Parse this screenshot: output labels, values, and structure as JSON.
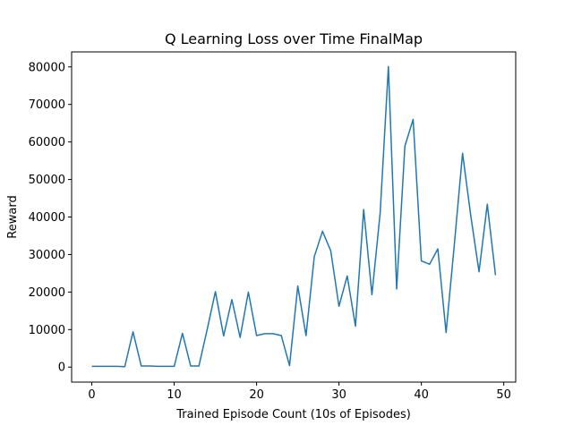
{
  "chart_data": {
    "type": "line",
    "title": "Q Learning Loss over Time FinalMap",
    "xlabel": "Trained Episode Count (10s of Episodes)",
    "ylabel": "Reward",
    "xlim": [
      -2.45,
      51.45
    ],
    "ylim": [
      -4000,
      84000
    ],
    "xticks": [
      0,
      10,
      20,
      30,
      40,
      50
    ],
    "yticks": [
      0,
      10000,
      20000,
      30000,
      40000,
      50000,
      60000,
      70000,
      80000
    ],
    "grid": false,
    "legend": "none",
    "series_color": "#1f77b4",
    "x": [
      0,
      1,
      2,
      3,
      4,
      5,
      6,
      7,
      8,
      9,
      10,
      11,
      12,
      13,
      14,
      15,
      16,
      17,
      18,
      19,
      20,
      21,
      22,
      23,
      24,
      25,
      26,
      27,
      28,
      29,
      30,
      31,
      32,
      33,
      34,
      35,
      36,
      37,
      38,
      39,
      40,
      41,
      42,
      43,
      44,
      45,
      46,
      47,
      48,
      49
    ],
    "series": [
      {
        "values": [
          200,
          200,
          200,
          200,
          100,
          9400,
          300,
          300,
          200,
          200,
          200,
          9000,
          300,
          300,
          10000,
          20100,
          8300,
          18000,
          7900,
          20000,
          8400,
          8900,
          8900,
          8400,
          400,
          21600,
          8400,
          29400,
          36200,
          31000,
          16200,
          24300,
          10900,
          42000,
          19300,
          41100,
          80100,
          20800,
          58900,
          66000,
          28300,
          27400,
          31500,
          9200,
          32600,
          57000,
          40300,
          25400,
          43400,
          24500
        ]
      }
    ]
  }
}
